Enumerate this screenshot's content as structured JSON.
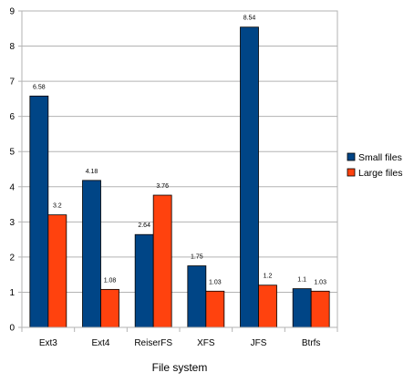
{
  "chart_data": {
    "type": "bar",
    "title": "",
    "xlabel": "File system",
    "ylabel": "",
    "categories": [
      "Ext3",
      "Ext4",
      "ReiserFS",
      "XFS",
      "JFS",
      "Btrfs"
    ],
    "ylim": [
      0,
      9
    ],
    "yticks": [
      0,
      1,
      2,
      3,
      4,
      5,
      6,
      7,
      8,
      9
    ],
    "grid": true,
    "legend": "right",
    "series": [
      {
        "name": "Small files",
        "color": "#004586",
        "values": [
          6.58,
          4.18,
          2.64,
          1.75,
          8.54,
          1.1
        ],
        "labels": [
          "6.58",
          "4.18",
          "2.64",
          "1.75",
          "8.54",
          "1.1"
        ]
      },
      {
        "name": "Large files",
        "color": "#ff420e",
        "values": [
          3.2,
          1.08,
          3.76,
          1.03,
          1.2,
          1.03
        ],
        "labels": [
          "3.2",
          "1.08",
          "3.76",
          "1.03",
          "1.2",
          "1.03"
        ]
      }
    ]
  }
}
